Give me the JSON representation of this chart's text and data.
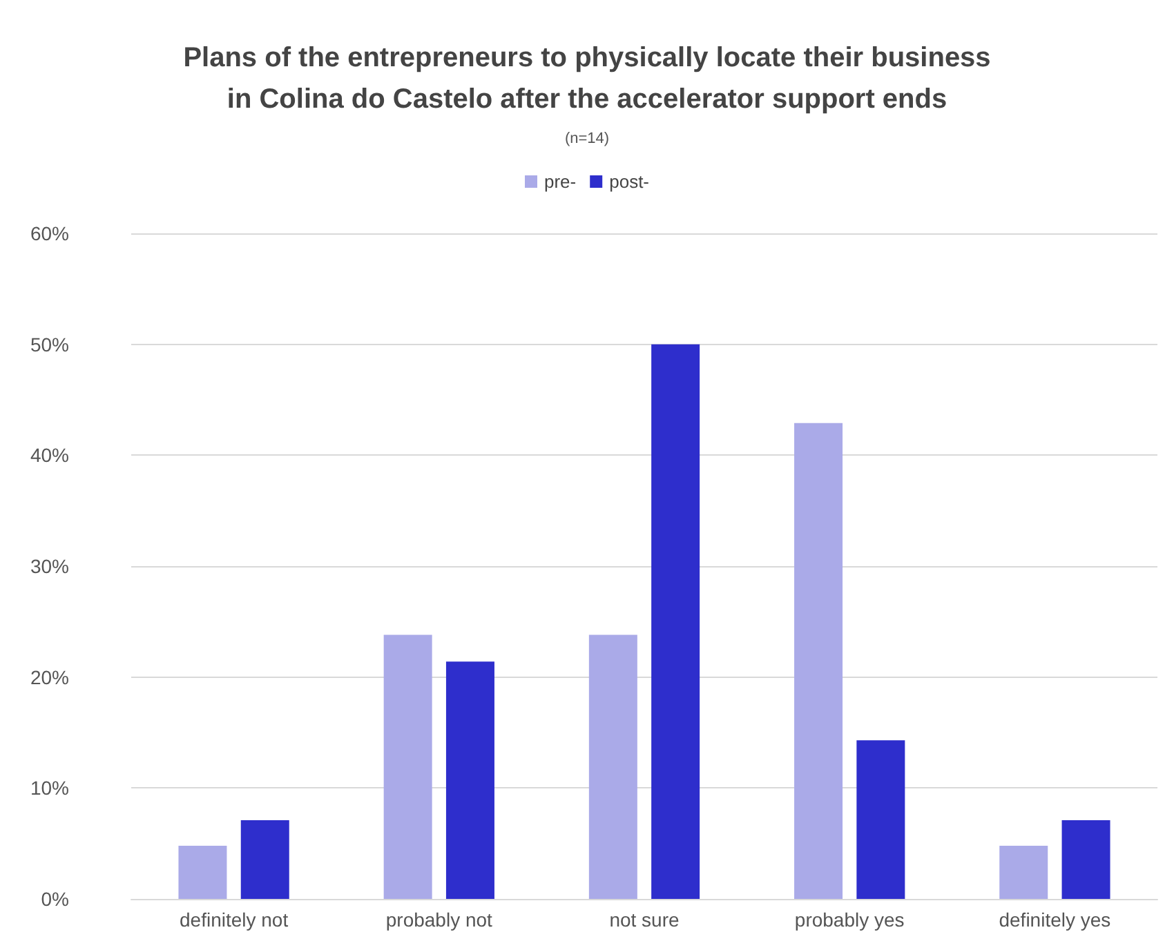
{
  "chart_data": {
    "type": "bar",
    "title": "Plans of the entrepreneurs to physically locate their business\nin Colina do Castelo after the accelerator support ends",
    "subtitle": "(n=14)",
    "categories": [
      "definitely not",
      "probably not",
      "not sure",
      "probably yes",
      "definitely yes"
    ],
    "series": [
      {
        "name": "pre-",
        "color": "#aaaae8",
        "values": [
          4.8,
          23.8,
          23.8,
          42.9,
          4.8
        ]
      },
      {
        "name": "post-",
        "color": "#2e2ecc",
        "values": [
          7.1,
          21.4,
          50,
          14.3,
          7.1
        ]
      }
    ],
    "ylim": [
      0,
      60
    ],
    "yticks": [
      {
        "value": 0,
        "label": "0%"
      },
      {
        "value": 10,
        "label": "10%"
      },
      {
        "value": 20,
        "label": "20%"
      },
      {
        "value": 30,
        "label": "30%"
      },
      {
        "value": 40,
        "label": "40%"
      },
      {
        "value": 50,
        "label": "50%"
      },
      {
        "value": 60,
        "label": "60%"
      }
    ],
    "grid": "y",
    "legend": "top"
  }
}
